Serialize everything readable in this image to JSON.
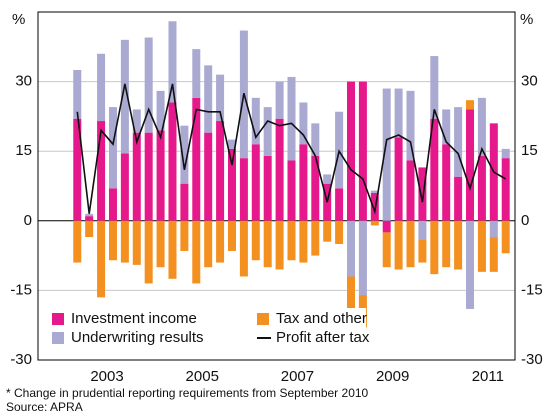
{
  "chart_data": {
    "type": "bar",
    "y_unit_left": "%",
    "y_unit_right": "%",
    "x": [
      2002.875,
      2003.125,
      2003.375,
      2003.625,
      2003.875,
      2004.125,
      2004.375,
      2004.625,
      2004.875,
      2005.125,
      2005.375,
      2005.625,
      2005.875,
      2006.125,
      2006.375,
      2006.625,
      2006.875,
      2007.125,
      2007.375,
      2007.625,
      2007.875,
      2008.125,
      2008.375,
      2008.625,
      2008.875,
      2009.125,
      2009.375,
      2009.625,
      2009.875,
      2010.125,
      2010.375,
      2010.625,
      2010.875,
      2011.125,
      2011.375,
      2011.625,
      2011.875
    ],
    "series": [
      {
        "name": "Investment income",
        "color": "#e6198c",
        "kind": "bar",
        "values": [
          22,
          1,
          21.5,
          7,
          14.5,
          19,
          19,
          19.5,
          25.5,
          8,
          26.5,
          19,
          21.5,
          15.5,
          13.5,
          16.5,
          14,
          22,
          13,
          16.5,
          14,
          8,
          7,
          30,
          30,
          6,
          -2.5,
          18,
          13,
          11.5,
          22,
          16.5,
          9.5,
          24,
          14,
          21,
          13.5
        ]
      },
      {
        "name": "Underwriting results",
        "color": "#a9a9d2",
        "kind": "bar",
        "values": [
          10.5,
          0.5,
          14.5,
          17.5,
          24.5,
          5,
          20.5,
          8.5,
          17.5,
          12.5,
          10.5,
          14.5,
          10,
          2,
          27.5,
          10,
          10.5,
          8,
          18,
          9,
          7,
          2,
          16.5,
          -12,
          -16,
          0.5,
          28.5,
          10.5,
          15,
          -4,
          13.5,
          7.5,
          15,
          -19,
          12.5,
          -3.5,
          2
        ]
      },
      {
        "name": "Tax and other",
        "color": "#f39020",
        "kind": "bar",
        "values": [
          -9,
          -3.5,
          -16.5,
          -8.5,
          -9,
          -9.5,
          -13.5,
          -10,
          -12.5,
          -6.5,
          -13.5,
          -10,
          -9,
          -6.5,
          -12,
          -8.5,
          -10,
          -10.5,
          -8.5,
          -9,
          -7.5,
          -4.5,
          -5,
          -7,
          -7,
          -1,
          -7.5,
          -10.5,
          -10,
          -5,
          -11.5,
          -10,
          -10.5,
          2,
          -11,
          -7.5,
          -7
        ]
      },
      {
        "name": "Profit after tax",
        "color": "#111111",
        "kind": "line",
        "values": [
          23.5,
          1.5,
          19.5,
          16.5,
          29.5,
          17,
          24,
          18,
          29.5,
          11,
          24,
          23.5,
          23.5,
          12,
          27.5,
          18,
          21.5,
          20.5,
          21,
          18.5,
          14,
          4,
          15,
          11,
          9,
          2,
          17.5,
          18.5,
          17,
          4,
          24,
          17,
          14.5,
          7,
          15.5,
          10.5,
          9
        ]
      }
    ],
    "xlim": [
      2002.05,
      2012.07
    ],
    "xticks": [
      {
        "value": 2003.5,
        "label": "2003"
      },
      {
        "value": 2005.5,
        "label": "2005"
      },
      {
        "value": 2007.5,
        "label": "2007"
      },
      {
        "value": 2009.5,
        "label": "2009"
      },
      {
        "value": 2011.5,
        "label": "2011"
      }
    ],
    "ylim": [
      -30,
      45
    ],
    "yticks": [
      -30,
      -15,
      0,
      15,
      30
    ],
    "grid": true,
    "legend": "bottom-left",
    "footnote": "*     Change in prudential reporting requirements from September 2010",
    "source": "Source: APRA"
  }
}
